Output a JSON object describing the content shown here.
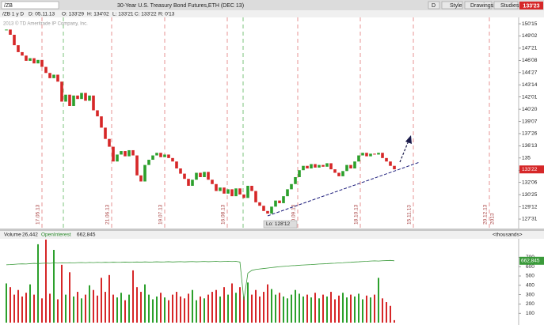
{
  "toolbar": {
    "symbol": "/ZB",
    "chart_label": "/ZB 1 y D",
    "date": "D: 05.11.13",
    "open": "O: 133'29",
    "high": "H: 134'02",
    "low": "L: 133'21",
    "close": "C: 133'22",
    "range": "R: 0'13",
    "description": "30-Year U.S. Treasury Bond Futures,ETH (DEC 13)",
    "last": "133'23",
    "buttons": [
      "D",
      "Style",
      "Drawings",
      "Studies"
    ]
  },
  "watermark": "2013 © TD Ameritrade IP Company, Inc.",
  "chart_data": [
    {
      "type": "candlestick",
      "low_label": "Lo: 128'12",
      "dates": [
        "17.05.13",
        "21.06.13",
        "19.07.13",
        "16.08.13",
        "20.09.13",
        "18.10.13",
        "15.11.13",
        "20.12.13",
        "2013"
      ],
      "ylim": [
        127.06,
        151.93
      ],
      "yticks": [
        {
          "value": 150.46875,
          "label": "150'15"
        },
        {
          "value": 149.0625,
          "label": "149'02"
        },
        {
          "value": 147.65625,
          "label": "147'21"
        },
        {
          "value": 146.25,
          "label": "146'08"
        },
        {
          "value": 144.84375,
          "label": "144'27"
        },
        {
          "value": 143.4375,
          "label": "143'14"
        },
        {
          "value": 142.03125,
          "label": "142'01"
        },
        {
          "value": 140.625,
          "label": "140'20"
        },
        {
          "value": 139.21875,
          "label": "139'07"
        },
        {
          "value": 137.8125,
          "label": "137'26"
        },
        {
          "value": 136.40625,
          "label": "136'13"
        },
        135,
        {
          "value": 133.59375,
          "label": "133'19"
        },
        {
          "value": 132.1875,
          "label": "132'06"
        },
        {
          "value": 130.78125,
          "label": "130'25"
        },
        {
          "value": 129.375,
          "label": "129'12"
        },
        {
          "value": 127.96875,
          "label": "127'31"
        }
      ],
      "last_tick": {
        "value": 133.6875,
        "label": "133'22"
      },
      "up_color": "#2ca02c",
      "down_color": "#d62728",
      "closes": [
        149.8,
        149.2,
        148,
        147.2,
        146.8,
        146.2,
        146.5,
        145.9,
        146.3,
        145.5,
        144.8,
        144.2,
        144.6,
        143.8,
        141.5,
        142.3,
        141,
        142.2,
        141.8,
        142.5,
        141.6,
        142.2,
        140.5,
        139.8,
        138.5,
        137.2,
        136.3,
        134.6,
        135.4,
        135.8,
        135.2,
        135.9,
        135.3,
        133,
        132.3,
        134.2,
        134.8,
        135.3,
        135.6,
        135.1,
        135.4,
        135,
        134.6,
        133.8,
        133.2,
        132.6,
        131.8,
        132.5,
        133.3,
        132.8,
        133.4,
        132.5,
        132,
        131.2,
        131.6,
        130.9,
        131.4,
        130.6,
        131.5,
        130.8,
        130.4,
        131.8,
        131.2,
        129.9,
        129.5,
        128.9,
        128.6,
        129.4,
        130.1,
        129.8,
        130.6,
        131.4,
        132,
        132.8,
        133.6,
        134.1,
        133.8,
        134.3,
        133.9,
        134.2,
        134,
        134.4,
        133.7,
        133.3,
        132.9,
        133.5,
        134.2,
        133.8,
        134.6,
        135.3,
        135.6,
        135.2,
        135.5,
        135.4,
        135.6,
        135,
        134.6,
        134.1,
        133.7
      ]
    },
    {
      "type": "bar",
      "unit_label": "<thousands>",
      "ylim": [
        0,
        890
      ],
      "yticks": [
        100,
        200,
        300,
        400,
        500,
        600,
        700
      ],
      "series": [
        {
          "name": "Volume",
          "last_label": "26,442",
          "values": [
            420,
            380,
            300,
            350,
            280,
            320,
            410,
            300,
            840,
            260,
            890,
            310,
            780,
            250,
            620,
            300,
            540,
            280,
            330,
            260,
            300,
            400,
            350,
            290,
            480,
            330,
            510,
            300,
            270,
            320,
            240,
            300,
            560,
            380,
            330,
            410,
            300,
            250,
            280,
            320,
            270,
            240,
            300,
            330,
            280,
            260,
            310,
            350,
            240,
            280,
            260,
            300,
            330,
            350,
            280,
            380,
            300,
            420,
            320,
            380,
            280,
            430,
            300,
            350,
            280,
            330,
            410,
            360,
            300,
            320,
            280,
            260,
            300,
            350,
            310,
            280,
            300,
            270,
            320,
            260,
            300,
            280,
            330,
            250,
            290,
            320,
            270,
            300,
            280,
            310,
            250,
            290,
            270,
            300,
            480,
            260,
            220,
            180,
            26.442
          ]
        },
        {
          "name": "OpenInterest",
          "color": "#3a9a3a",
          "last_label": "662,845",
          "values": [
            620,
            622,
            625,
            628,
            630,
            628,
            632,
            635,
            633,
            636,
            638,
            636,
            640,
            638,
            641,
            640,
            642,
            640,
            643,
            644,
            642,
            645,
            643,
            646,
            644,
            647,
            645,
            648,
            646,
            647,
            649,
            647,
            648,
            650,
            648,
            651,
            649,
            650,
            652,
            650,
            651,
            653,
            650,
            652,
            654,
            651,
            653,
            655,
            652,
            654,
            656,
            653,
            655,
            657,
            654,
            656,
            658,
            655,
            657,
            650,
            240,
            530,
            560,
            570,
            575,
            580,
            585,
            590,
            595,
            600,
            603,
            606,
            610,
            612,
            615,
            618,
            620,
            622,
            625,
            628,
            630,
            632,
            635,
            637,
            640,
            642,
            645,
            647,
            650,
            652,
            655,
            657,
            660,
            662,
            660,
            663,
            665,
            667,
            662.845
          ]
        }
      ]
    }
  ]
}
